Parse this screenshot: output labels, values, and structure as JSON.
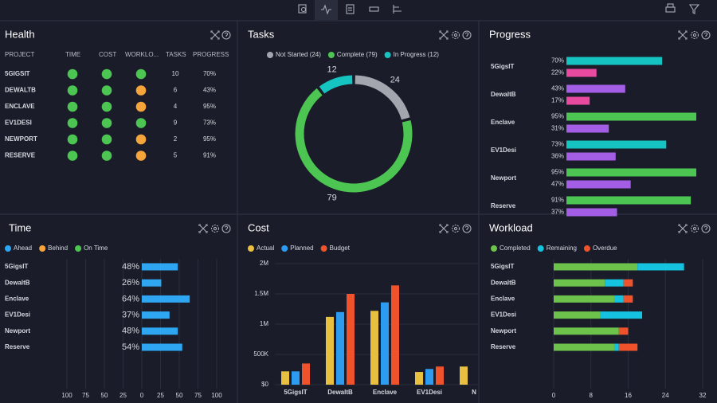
{
  "health": {
    "title": "Health",
    "columns": [
      "PROJECT",
      "TIME",
      "COST",
      "WORKLO...",
      "TASKS",
      "PROGRESS"
    ],
    "rows": [
      [
        "5GIGSIT",
        "#4cc552",
        "#4cc552",
        "#4cc552",
        10,
        "70%"
      ],
      [
        "DEWALTB",
        "#4cc552",
        "#4cc552",
        "#f5a53a",
        6,
        "43%"
      ],
      [
        "ENCLAVE",
        "#4cc552",
        "#4cc552",
        "#f5a53a",
        4,
        "95%"
      ],
      [
        "EV1DESI",
        "#4cc552",
        "#4cc552",
        "#4cc552",
        9,
        "73%"
      ],
      [
        "NEWPORT",
        "#4cc552",
        "#4cc552",
        "#f5a53a",
        2,
        "95%"
      ],
      [
        "RESERVE",
        "#4cc552",
        "#4cc552",
        "#f5a53a",
        5,
        "91%"
      ]
    ]
  },
  "chart_data": [
    {
      "type": "donut",
      "title": "Tasks",
      "categories": [
        "Not Started (24)",
        "Complete (79)",
        "In Progress (12)"
      ],
      "values": [
        24,
        79,
        12
      ],
      "colors": [
        "#a3a6ae",
        "#4cc552",
        "#15c3c0"
      ]
    },
    {
      "type": "hbar",
      "title": "Progress",
      "categories": [
        "5GigsIT",
        "DewaltB",
        "Enclave",
        "EV1Desi",
        "Newport",
        "Reserve"
      ],
      "xlim": [
        0,
        100
      ],
      "series": [
        {
          "colors": [
            "#15c3c0",
            "#a45ee5",
            "#4cc552",
            "#15c3c0",
            "#4cc552",
            "#4cc552"
          ],
          "values": [
            70,
            43,
            95,
            73,
            95,
            91
          ],
          "value_labels": [
            "70%",
            "43%",
            "95%",
            "73%",
            "95%",
            "91%"
          ]
        },
        {
          "colors": [
            "#e84aa0",
            "#e84aa0",
            "#a45ee5",
            "#a45ee5",
            "#a45ee5",
            "#a45ee5"
          ],
          "values": [
            22,
            17,
            31,
            36,
            47,
            37
          ],
          "value_labels": [
            "22%",
            "17%",
            "31%",
            "36%",
            "47%",
            "37%"
          ]
        }
      ]
    },
    {
      "type": "hbar",
      "title": "Time",
      "categories": [
        "5GigsIT",
        "DewaltB",
        "Enclave",
        "EV1Desi",
        "Newport",
        "Reserve"
      ],
      "xlim": [
        -100,
        100
      ],
      "xticks": [
        {
          "value": -100,
          "label": "100"
        },
        {
          "value": -75,
          "label": "75"
        },
        {
          "value": -50,
          "label": "50"
        },
        {
          "value": -25,
          "label": "25"
        },
        0,
        25,
        50,
        75,
        100
      ],
      "grid": true,
      "series": [
        {
          "name": "Ahead",
          "color": "#2ea6f2",
          "values": [
            48,
            26,
            64,
            37,
            48,
            54
          ],
          "value_labels": [
            "48%",
            "26%",
            "64%",
            "37%",
            "48%",
            "54%"
          ]
        },
        {
          "name": "Behind",
          "color": "#f5a53a",
          "values": [
            null,
            null,
            null,
            null,
            null,
            null
          ]
        },
        {
          "name": "On Time",
          "color": "#4cc552",
          "values": [
            null,
            null,
            null,
            null,
            null,
            null
          ]
        }
      ]
    },
    {
      "type": "bar",
      "title": "Cost",
      "categories": [
        "5GigsIT",
        "DewaltB",
        "Enclave",
        "EV1Desi",
        "N"
      ],
      "ylim": [
        0,
        2000000
      ],
      "yticks": [
        {
          "value": 0,
          "label": "$0"
        },
        {
          "value": 500000,
          "label": "500K"
        },
        {
          "value": 1000000,
          "label": "1M"
        },
        {
          "value": 1500000,
          "label": "1.5M"
        },
        {
          "value": 2000000,
          "label": "2M"
        }
      ],
      "grid": true,
      "series": [
        {
          "name": "Actual",
          "color": "#e8bf3f",
          "values": [
            220000,
            1120000,
            1220000,
            210000,
            300000
          ]
        },
        {
          "name": "Planned",
          "color": "#2d9cf0",
          "values": [
            220000,
            1200000,
            1360000,
            260000,
            null
          ]
        },
        {
          "name": "Budget",
          "color": "#f0522c",
          "values": [
            350000,
            1500000,
            1640000,
            300000,
            null
          ]
        }
      ]
    },
    {
      "type": "stackedbar",
      "title": "Workload",
      "categories": [
        "5GigsIT",
        "DewaltB",
        "Enclave",
        "EV1Desi",
        "Newport",
        "Reserve"
      ],
      "xlim": [
        0,
        32
      ],
      "xticks": [
        0,
        8,
        16,
        24,
        32
      ],
      "grid": true,
      "series": [
        {
          "name": "Completed",
          "color": "#6cc24a",
          "values": [
            18,
            11,
            13,
            10,
            14,
            13
          ]
        },
        {
          "name": "Remaining",
          "color": "#15c3e0",
          "values": [
            10,
            4,
            2,
            9,
            0,
            1
          ]
        },
        {
          "name": "Overdue",
          "color": "#f0522c",
          "values": [
            0,
            2,
            2,
            0,
            2,
            4
          ]
        }
      ]
    }
  ]
}
